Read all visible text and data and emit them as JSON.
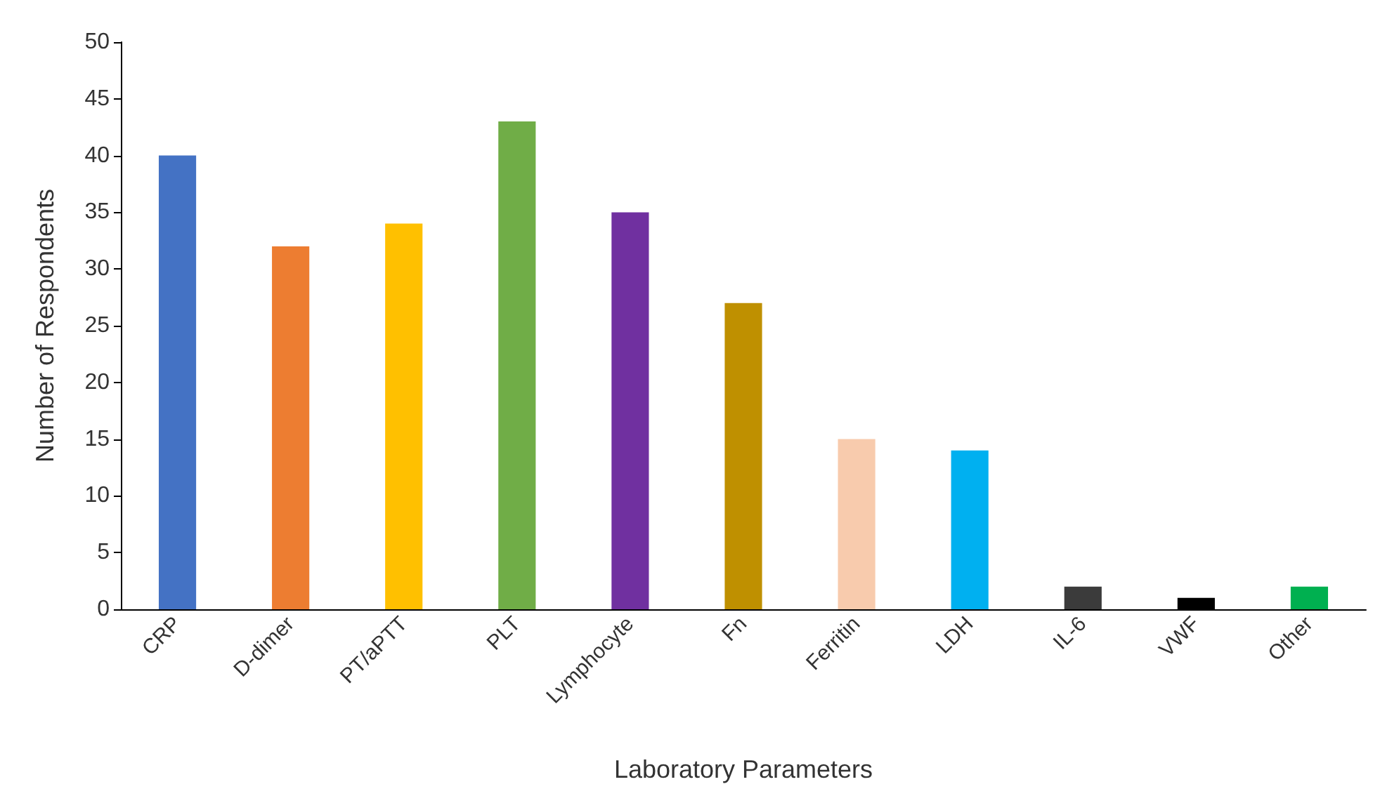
{
  "chart_data": {
    "type": "bar",
    "xlabel": "Laboratory Parameters",
    "ylabel": "Number of Respondents",
    "categories": [
      "CRP",
      "D-dimer",
      "PT/aPTT",
      "PLT",
      "Lymphocyte",
      "Fn",
      "Ferritin",
      "LDH",
      "IL-6",
      "VWF",
      "Other"
    ],
    "values": [
      40,
      32,
      34,
      43,
      35,
      27,
      15,
      14,
      2,
      1,
      2
    ],
    "colors": [
      "#4472c4",
      "#ed7d31",
      "#ffc000",
      "#70ad47",
      "#7030a0",
      "#bf9000",
      "#f8cbad",
      "#00b0f0",
      "#3b3b3b",
      "#000000",
      "#00b050"
    ],
    "ylim": [
      0,
      50
    ],
    "yticks": [
      0,
      5,
      10,
      15,
      20,
      25,
      30,
      35,
      40,
      45,
      50
    ],
    "grid": false
  }
}
